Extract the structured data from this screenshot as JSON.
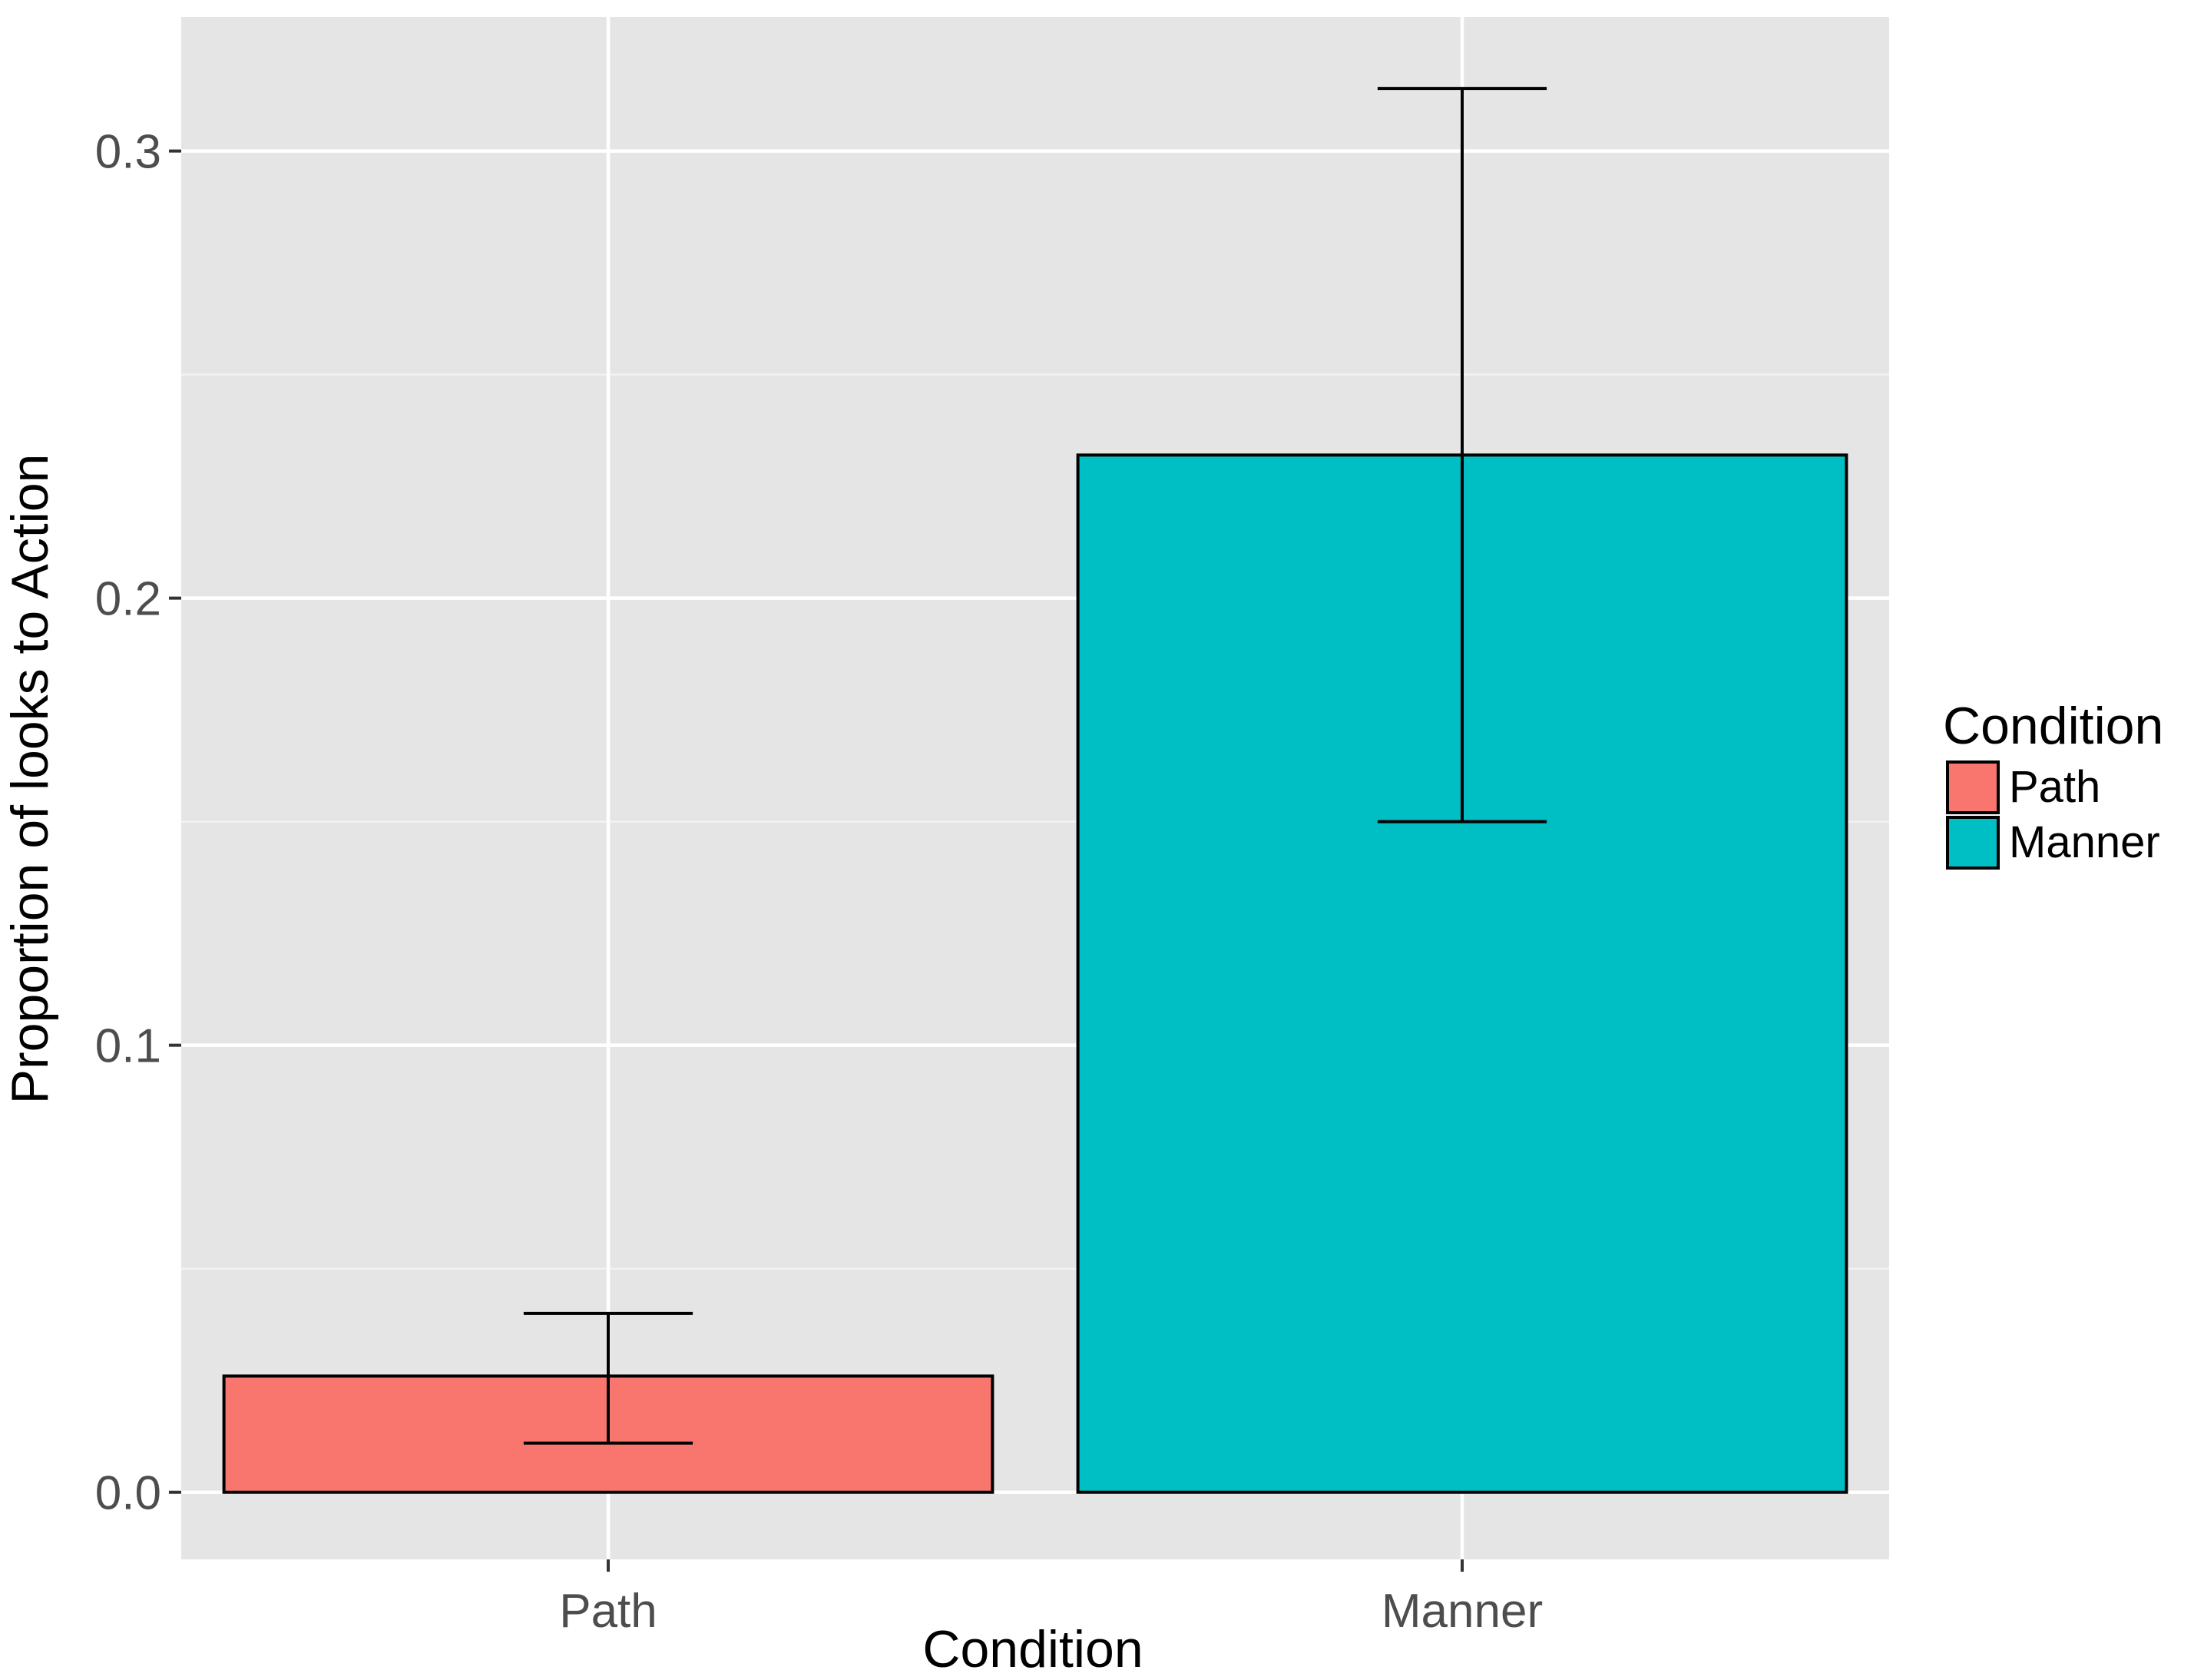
{
  "chart_data": {
    "type": "bar",
    "categories": [
      "Path",
      "Manner"
    ],
    "values": [
      0.026,
      0.232
    ],
    "error_bars": [
      {
        "low": 0.011,
        "high": 0.04
      },
      {
        "low": 0.15,
        "high": 0.314
      }
    ],
    "colors": [
      "#F8766D",
      "#00BFC4"
    ],
    "xlabel": "Condition",
    "ylabel": "Proportion of looks to Action",
    "ylim": [
      -0.015,
      0.33
    ],
    "yticks": [
      0.0,
      0.1,
      0.2,
      0.3
    ],
    "ytick_labels": [
      "0.0",
      "0.1",
      "0.2",
      "0.3"
    ],
    "grid": true,
    "legend": {
      "title": "Condition",
      "position": "right",
      "entries": [
        "Path",
        "Manner"
      ]
    }
  }
}
